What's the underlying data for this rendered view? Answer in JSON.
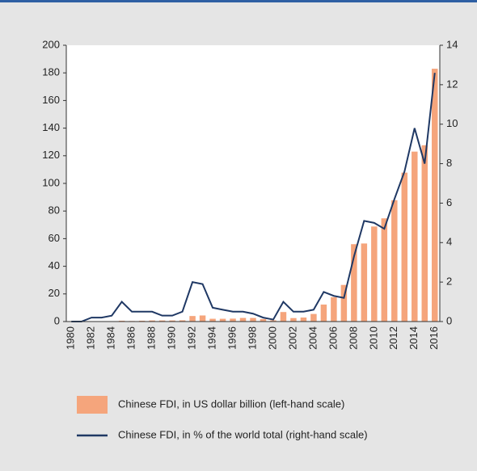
{
  "chart_data": {
    "type": "bar",
    "categories": [
      "1980",
      null,
      "1982",
      null,
      "1984",
      null,
      "1986",
      null,
      "1988",
      null,
      "1990",
      null,
      "1992",
      null,
      "1994",
      null,
      "1996",
      null,
      "1998",
      null,
      "2000",
      null,
      "2002",
      null,
      "2004",
      null,
      "2006",
      null,
      "2008",
      null,
      "2010",
      null,
      "2012",
      null,
      "2014",
      null,
      "2016"
    ],
    "series": [
      {
        "name": "Chinese FDI, in US dollar billion (left-hand scale)",
        "type": "bar",
        "color": "#f5a57c",
        "values": [
          0,
          0,
          0.04,
          0.1,
          0.1,
          0.6,
          0.4,
          0.6,
          0.8,
          0.8,
          0.8,
          0.9,
          4,
          4.4,
          2,
          2,
          2.1,
          2.6,
          2.6,
          1.8,
          0.9,
          6.9,
          2.5,
          2.9,
          5.5,
          12.3,
          17.6,
          26.5,
          56,
          56.5,
          68.8,
          74.7,
          87.8,
          107.8,
          123,
          127.6,
          183
        ]
      },
      {
        "name": "Chinese FDI, in % of the world total (right-hand scale)",
        "type": "line",
        "axis": "y2",
        "color": "#1f3864",
        "values": [
          0,
          0,
          0.2,
          0.2,
          0.3,
          1.0,
          0.5,
          0.5,
          0.5,
          0.3,
          0.3,
          0.5,
          2.0,
          1.9,
          0.7,
          0.6,
          0.5,
          0.5,
          0.4,
          0.2,
          0.1,
          1.0,
          0.5,
          0.5,
          0.6,
          1.5,
          1.3,
          1.2,
          3.3,
          5.1,
          5.0,
          4.7,
          6.2,
          7.6,
          9.8,
          8.0,
          12.6
        ]
      }
    ],
    "ylim": [
      0,
      200
    ],
    "yticks": [
      0,
      20,
      40,
      60,
      80,
      100,
      120,
      140,
      160,
      180,
      200
    ],
    "y2lim": [
      0,
      14
    ],
    "y2ticks": [
      0,
      2,
      4,
      6,
      8,
      10,
      12,
      14
    ],
    "grid": false
  }
}
